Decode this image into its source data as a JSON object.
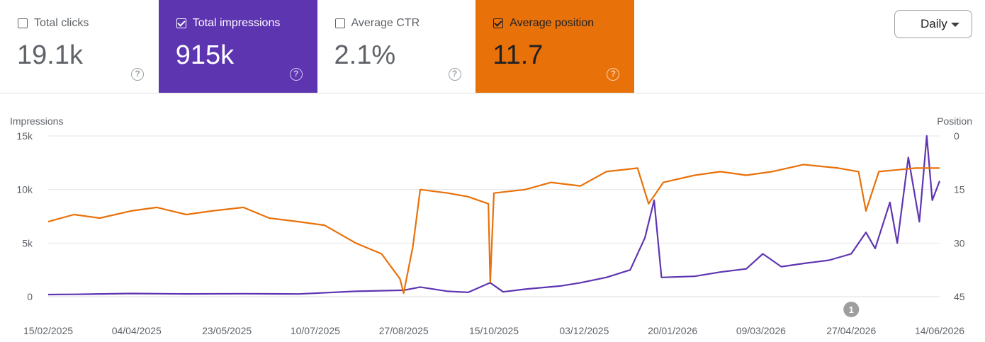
{
  "metrics": [
    {
      "label": "Total clicks",
      "value": "19.1k",
      "checked": false
    },
    {
      "label": "Total impressions",
      "value": "915k",
      "checked": true
    },
    {
      "label": "Average CTR",
      "value": "2.1%",
      "checked": false
    },
    {
      "label": "Average position",
      "value": "11.7",
      "checked": true
    }
  ],
  "help_glyph": "?",
  "granularity": {
    "selected": "Daily"
  },
  "annotation_marker": "1",
  "colors": {
    "impressions": "#5e35b1",
    "position": "#e8710a",
    "grid": "#e6e6e6",
    "baseline": "#dadce0",
    "marker": "#9e9e9e"
  },
  "chart_data": {
    "type": "line",
    "left_axis": {
      "label": "Impressions",
      "min": 0,
      "max": 15000,
      "ticks": [
        "0",
        "5k",
        "10k",
        "15k"
      ],
      "tick_values": [
        0,
        5000,
        10000,
        15000
      ]
    },
    "right_axis": {
      "label": "Position",
      "min": 0,
      "max": 45,
      "reversed": true,
      "ticks": [
        "0",
        "15",
        "30",
        "45"
      ],
      "tick_values": [
        0,
        15,
        30,
        45
      ]
    },
    "x_ticks": [
      "15/02/2025",
      "04/04/2025",
      "23/05/2025",
      "10/07/2025",
      "27/08/2025",
      "15/10/2025",
      "03/12/2025",
      "20/01/2026",
      "09/03/2026",
      "27/04/2026",
      "14/06/2026"
    ],
    "x_range": [
      "15/02/2025",
      "14/06/2026"
    ],
    "grid": true,
    "annotations": [
      {
        "date": "27/04/2026",
        "label": "1"
      }
    ],
    "series": [
      {
        "name": "Impressions",
        "axis": "left",
        "points": [
          [
            "15/02/2025",
            200
          ],
          [
            "01/03/2025",
            220
          ],
          [
            "01/04/2025",
            300
          ],
          [
            "01/05/2025",
            260
          ],
          [
            "01/06/2025",
            280
          ],
          [
            "01/07/2025",
            250
          ],
          [
            "01/08/2025",
            500
          ],
          [
            "27/08/2025",
            600
          ],
          [
            "05/09/2025",
            900
          ],
          [
            "20/09/2025",
            500
          ],
          [
            "01/10/2025",
            400
          ],
          [
            "13/10/2025",
            1300
          ],
          [
            "20/10/2025",
            450
          ],
          [
            "01/11/2025",
            700
          ],
          [
            "20/11/2025",
            1000
          ],
          [
            "01/12/2025",
            1300
          ],
          [
            "15/12/2025",
            1800
          ],
          [
            "28/12/2025",
            2500
          ],
          [
            "05/01/2026",
            5500
          ],
          [
            "10/01/2026",
            9000
          ],
          [
            "14/01/2026",
            1800
          ],
          [
            "01/02/2026",
            1900
          ],
          [
            "15/02/2026",
            2300
          ],
          [
            "01/03/2026",
            2600
          ],
          [
            "10/03/2026",
            4000
          ],
          [
            "20/03/2026",
            2800
          ],
          [
            "01/04/2026",
            3100
          ],
          [
            "15/04/2026",
            3400
          ],
          [
            "27/04/2026",
            4000
          ],
          [
            "05/05/2026",
            6000
          ],
          [
            "10/05/2026",
            4500
          ],
          [
            "18/05/2026",
            8800
          ],
          [
            "22/05/2026",
            5000
          ],
          [
            "28/05/2026",
            13000
          ],
          [
            "03/06/2026",
            7000
          ],
          [
            "07/06/2026",
            15000
          ],
          [
            "10/06/2026",
            9000
          ],
          [
            "14/06/2026",
            10800
          ]
        ]
      },
      {
        "name": "Position",
        "axis": "right",
        "points": [
          [
            "15/02/2025",
            24
          ],
          [
            "01/03/2025",
            22
          ],
          [
            "15/03/2025",
            23
          ],
          [
            "01/04/2025",
            21
          ],
          [
            "15/04/2025",
            20
          ],
          [
            "01/05/2025",
            22
          ],
          [
            "15/05/2025",
            21
          ],
          [
            "01/06/2025",
            20
          ],
          [
            "15/06/2025",
            23
          ],
          [
            "01/07/2025",
            24
          ],
          [
            "15/07/2025",
            25
          ],
          [
            "01/08/2025",
            30
          ],
          [
            "15/08/2025",
            33
          ],
          [
            "25/08/2025",
            40
          ],
          [
            "27/08/2025",
            44
          ],
          [
            "01/09/2025",
            31
          ],
          [
            "05/09/2025",
            15
          ],
          [
            "20/09/2025",
            16
          ],
          [
            "01/10/2025",
            17
          ],
          [
            "12/10/2025",
            19
          ],
          [
            "13/10/2025",
            41
          ],
          [
            "15/10/2025",
            16
          ],
          [
            "01/11/2025",
            15
          ],
          [
            "15/11/2025",
            13
          ],
          [
            "01/12/2025",
            14
          ],
          [
            "15/12/2025",
            10
          ],
          [
            "01/01/2026",
            9
          ],
          [
            "07/01/2026",
            19
          ],
          [
            "15/01/2026",
            13
          ],
          [
            "01/02/2026",
            11
          ],
          [
            "15/02/2026",
            10
          ],
          [
            "01/03/2026",
            11
          ],
          [
            "15/03/2026",
            10
          ],
          [
            "01/04/2026",
            8
          ],
          [
            "20/04/2026",
            9
          ],
          [
            "01/05/2026",
            10
          ],
          [
            "05/05/2026",
            21
          ],
          [
            "12/05/2026",
            10
          ],
          [
            "01/06/2026",
            9
          ],
          [
            "14/06/2026",
            9
          ]
        ]
      }
    ]
  }
}
